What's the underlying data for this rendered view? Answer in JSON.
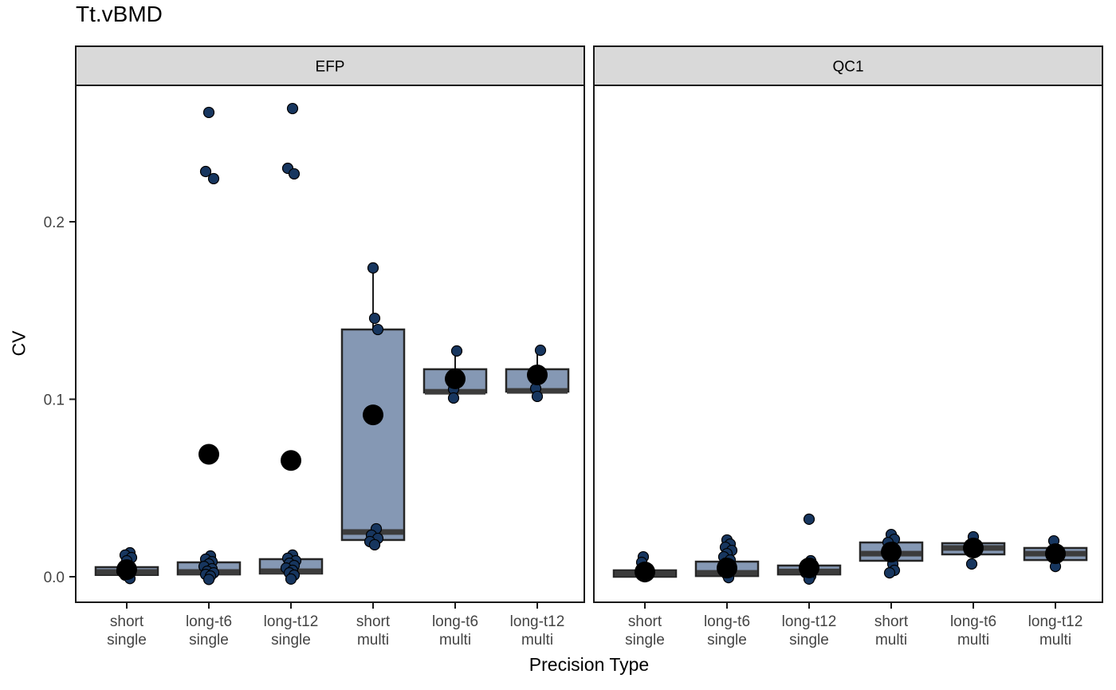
{
  "title": "Tt.vBMD",
  "axes": {
    "x_title": "Precision Type",
    "y_title": "CV",
    "y_ticks": [
      {
        "value": 0.0,
        "label": "0.0"
      },
      {
        "value": 0.1,
        "label": "0.1"
      },
      {
        "value": 0.2,
        "label": "0.2"
      }
    ],
    "category_labels": [
      [
        "short",
        "single"
      ],
      [
        "long-t6",
        "single"
      ],
      [
        "long-t12",
        "single"
      ],
      [
        "short",
        "multi"
      ],
      [
        "long-t6",
        "multi"
      ],
      [
        "long-t12",
        "multi"
      ]
    ]
  },
  "colors": {
    "background": "#FFFFFF",
    "strip_bg": "#D9D9D9",
    "strip_border": "#1A1A1A",
    "panel_border": "#1A1A1A",
    "box_fill": "#8598B4",
    "box_border": "#262626",
    "median": "#3C3C3C",
    "point_fill": "#17365F",
    "point_border": "#000000",
    "mean_fill": "#000000",
    "tick_label": "#444444",
    "text": "#000000"
  },
  "chart_data": {
    "type": "boxplot",
    "title": "Tt.vBMD",
    "xlabel": "Precision Type",
    "ylabel": "CV",
    "ylim": [
      -0.015,
      0.277
    ],
    "grid": false,
    "legend": "none",
    "facet_names": [
      "EFP",
      "QC1"
    ],
    "facets": [
      {
        "name": "EFP",
        "groups": [
          {
            "category": "short single",
            "q1": 0.001,
            "median": 0.0027,
            "q3": 0.0054,
            "whisker_low": 0.001,
            "whisker_high": 0.0054,
            "mean": 0.004,
            "points": [
              [
                0.0135,
                2
              ],
              [
                0.0122,
                -1
              ],
              [
                0.0108,
                3
              ],
              [
                0.009,
                0
              ],
              [
                0.006,
                -2
              ],
              [
                0.0045,
                2
              ],
              [
                0.003,
                -3
              ],
              [
                0.0018,
                1
              ],
              [
                0.0009,
                -1
              ],
              [
                -0.001,
                2
              ]
            ]
          },
          {
            "category": "long-t6 single",
            "q1": 0.0013,
            "median": 0.0027,
            "q3": 0.0081,
            "whisker_low": 0.0013,
            "whisker_high": 0.0081,
            "mean": 0.069,
            "points": [
              [
                0.2616,
                0
              ],
              [
                0.2283,
                -2
              ],
              [
                0.2243,
                3
              ],
              [
                0.0117,
                1
              ],
              [
                0.0099,
                -2
              ],
              [
                0.0085,
                2
              ],
              [
                0.0072,
                0
              ],
              [
                0.0058,
                -3
              ],
              [
                0.0045,
                2
              ],
              [
                0.0031,
                -1
              ],
              [
                0.0022,
                3
              ],
              [
                0.0013,
                -2
              ],
              [
                0.0004,
                1
              ],
              [
                -0.0015,
                0
              ]
            ]
          },
          {
            "category": "long-t12 single",
            "q1": 0.0018,
            "median": 0.0031,
            "q3": 0.0099,
            "whisker_low": 0.0018,
            "whisker_high": 0.0099,
            "mean": 0.0655,
            "points": [
              [
                0.2638,
                1
              ],
              [
                0.2301,
                -2
              ],
              [
                0.227,
                2
              ],
              [
                0.0122,
                1
              ],
              [
                0.0104,
                -2
              ],
              [
                0.009,
                3
              ],
              [
                0.0076,
                -1
              ],
              [
                0.0063,
                2
              ],
              [
                0.0049,
                -3
              ],
              [
                0.0036,
                1
              ],
              [
                0.0022,
                -1
              ],
              [
                0.0009,
                2
              ],
              [
                -0.0013,
                0
              ]
            ]
          },
          {
            "category": "short multi",
            "q1": 0.0207,
            "median": 0.0252,
            "q3": 0.1393,
            "whisker_low": 0.0207,
            "whisker_high": 0.174,
            "mean": 0.0912,
            "points": [
              [
                0.174,
                0
              ],
              [
                0.1456,
                1
              ],
              [
                0.1393,
                3
              ],
              [
                0.027,
                2
              ],
              [
                0.0234,
                -1
              ],
              [
                0.0216,
                3
              ],
              [
                0.0198,
                -2
              ],
              [
                0.018,
                1
              ]
            ]
          },
          {
            "category": "long-t6 multi",
            "q1": 0.1038,
            "median": 0.1042,
            "q3": 0.1169,
            "whisker_low": 0.1038,
            "whisker_high": 0.125,
            "mean": 0.1115,
            "points": [
              [
                0.1272,
                1
              ],
              [
                0.1056,
                -1
              ],
              [
                0.1007,
                -1
              ]
            ]
          },
          {
            "category": "long-t12 multi",
            "q1": 0.1043,
            "median": 0.1047,
            "q3": 0.1169,
            "whisker_low": 0.1043,
            "whisker_high": 0.1255,
            "mean": 0.1137,
            "points": [
              [
                0.1276,
                2
              ],
              [
                0.1061,
                -1
              ],
              [
                0.1016,
                0
              ]
            ]
          }
        ]
      },
      {
        "name": "QC1",
        "groups": [
          {
            "category": "short single",
            "q1": 0.0,
            "median": 0.0018,
            "q3": 0.0036,
            "whisker_low": 0.0,
            "whisker_high": 0.0036,
            "mean": 0.0027,
            "points": [
              [
                0.0112,
                -1
              ],
              [
                0.0081,
                -2
              ],
              [
                0.005,
                1
              ],
              [
                0.0031,
                -1
              ],
              [
                0.0013,
                2
              ],
              [
                0.0,
                0
              ]
            ]
          },
          {
            "category": "long-t6 single",
            "q1": 0.0004,
            "median": 0.0022,
            "q3": 0.0085,
            "whisker_low": 0.0004,
            "whisker_high": 0.0085,
            "mean": 0.0049,
            "points": [
              [
                0.0207,
                0
              ],
              [
                0.0184,
                2
              ],
              [
                0.0166,
                -1
              ],
              [
                0.0148,
                3
              ],
              [
                0.013,
                0
              ],
              [
                0.0112,
                -2
              ],
              [
                0.0094,
                2
              ],
              [
                0.0076,
                -1
              ],
              [
                0.0054,
                1
              ],
              [
                0.0036,
                -2
              ],
              [
                0.0013,
                0
              ],
              [
                -0.0005,
                1
              ]
            ]
          },
          {
            "category": "long-t12 single",
            "q1": 0.0013,
            "median": 0.003,
            "q3": 0.0063,
            "whisker_low": 0.0013,
            "whisker_high": 0.0063,
            "mean": 0.005,
            "points": [
              [
                0.0324,
                0
              ],
              [
                0.009,
                1
              ],
              [
                0.0067,
                -1
              ],
              [
                0.0045,
                2
              ],
              [
                0.0022,
                -2
              ],
              [
                0.0004,
                1
              ],
              [
                -0.0013,
                0
              ]
            ]
          },
          {
            "category": "short multi",
            "q1": 0.009,
            "median": 0.013,
            "q3": 0.0193,
            "whisker_low": 0.009,
            "whisker_high": 0.0193,
            "mean": 0.0139,
            "points": [
              [
                0.0238,
                0
              ],
              [
                0.0211,
                2
              ],
              [
                0.0193,
                -2
              ],
              [
                0.0166,
                1
              ],
              [
                0.0144,
                -1
              ],
              [
                0.0072,
                1
              ],
              [
                0.0036,
                2
              ],
              [
                0.0022,
                -1
              ]
            ]
          },
          {
            "category": "long-t6 multi",
            "q1": 0.0126,
            "median": 0.0162,
            "q3": 0.0189,
            "whisker_low": 0.0126,
            "whisker_high": 0.0189,
            "mean": 0.0162,
            "points": [
              [
                0.0225,
                0
              ],
              [
                0.0162,
                2
              ],
              [
                0.0072,
                -1
              ]
            ]
          },
          {
            "category": "long-t12 multi",
            "q1": 0.0094,
            "median": 0.013,
            "q3": 0.0162,
            "whisker_low": 0.0094,
            "whisker_high": 0.0162,
            "mean": 0.013,
            "points": [
              [
                0.0202,
                -1
              ],
              [
                0.0144,
                2
              ],
              [
                0.0058,
                0
              ]
            ]
          }
        ]
      }
    ]
  }
}
